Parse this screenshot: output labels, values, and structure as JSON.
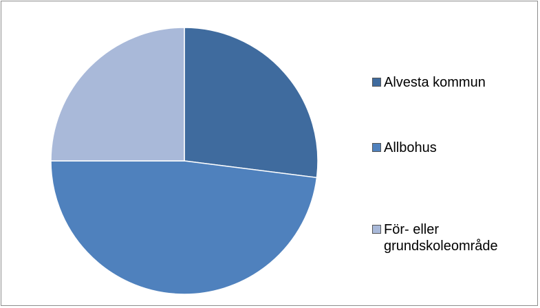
{
  "chart_data": {
    "type": "pie",
    "title": "",
    "categories": [
      "Alvesta kommun",
      "Allbohus",
      "För- eller grundskoleområde"
    ],
    "values": [
      27,
      48,
      25
    ],
    "colors": [
      "#3f6b9e",
      "#4f81bd",
      "#a9b9d9"
    ],
    "legend_position": "right",
    "start_angle_deg": 0,
    "direction": "clockwise"
  }
}
